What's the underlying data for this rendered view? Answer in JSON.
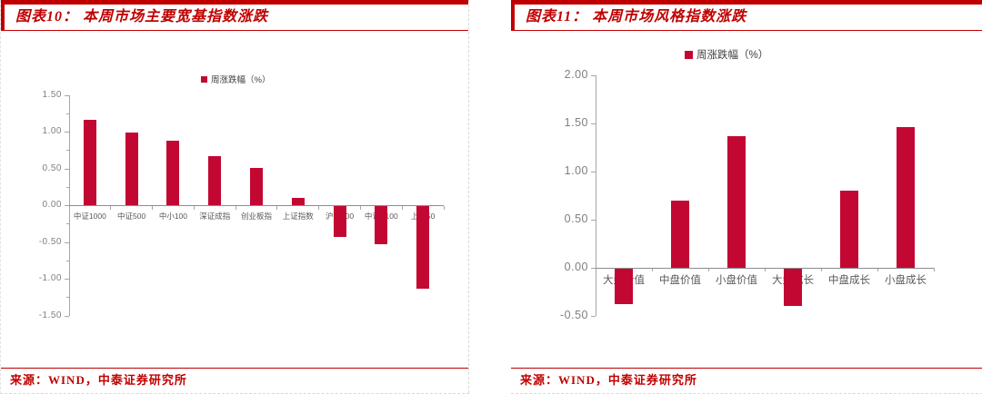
{
  "panels": [
    {
      "title": "图表10： 本周市场主要宽基指数涨跌",
      "legend": "周涨跌幅（%）",
      "source": "来源：WIND，中泰证券研究所"
    },
    {
      "title": "图表11： 本周市场风格指数涨跌",
      "legend": "周涨跌幅（%）",
      "source": "来源：WIND，中泰证券研究所"
    }
  ],
  "chart_data": [
    {
      "type": "bar",
      "title": "本周市场主要宽基指数涨跌",
      "legend": [
        "周涨跌幅（%）"
      ],
      "categories": [
        "中证1000",
        "中证500",
        "中小100",
        "深证成指",
        "创业板指",
        "上证指数",
        "沪深300",
        "中证A100",
        "上证50"
      ],
      "values": [
        1.17,
        1.0,
        0.88,
        0.67,
        0.51,
        0.11,
        -0.42,
        -0.52,
        -1.13
      ],
      "xlabel": "",
      "ylabel": "",
      "ylim": [
        -1.5,
        1.5
      ],
      "ytick_step": 0.5,
      "ytick_labels": [
        "1.50",
        "1.00",
        "0.50",
        "0.00",
        "-0.50",
        "-1.00",
        "-1.50"
      ],
      "grid": false,
      "legend_position": "top",
      "bar_color": "#c20832"
    },
    {
      "type": "bar",
      "title": "本周市场风格指数涨跌",
      "legend": [
        "周涨跌幅（%）"
      ],
      "categories": [
        "大盘价值",
        "中盘价值",
        "小盘价值",
        "大盘成长",
        "中盘成长",
        "小盘成长"
      ],
      "values": [
        -0.38,
        0.7,
        1.37,
        -0.4,
        0.8,
        1.46
      ],
      "xlabel": "",
      "ylabel": "",
      "ylim": [
        -0.5,
        2.0
      ],
      "ytick_step": 0.5,
      "ytick_labels": [
        "2.00",
        "1.50",
        "1.00",
        "0.50",
        "0.00",
        "-0.50"
      ],
      "grid": false,
      "legend_position": "top",
      "bar_color": "#c20832"
    }
  ],
  "colors": {
    "accent_red": "#c00000",
    "bar_red": "#c20832",
    "axis_gray": "#a6a6a6",
    "ylabel_gray": "#7f7f7f",
    "xlabel_gray": "#595959"
  }
}
